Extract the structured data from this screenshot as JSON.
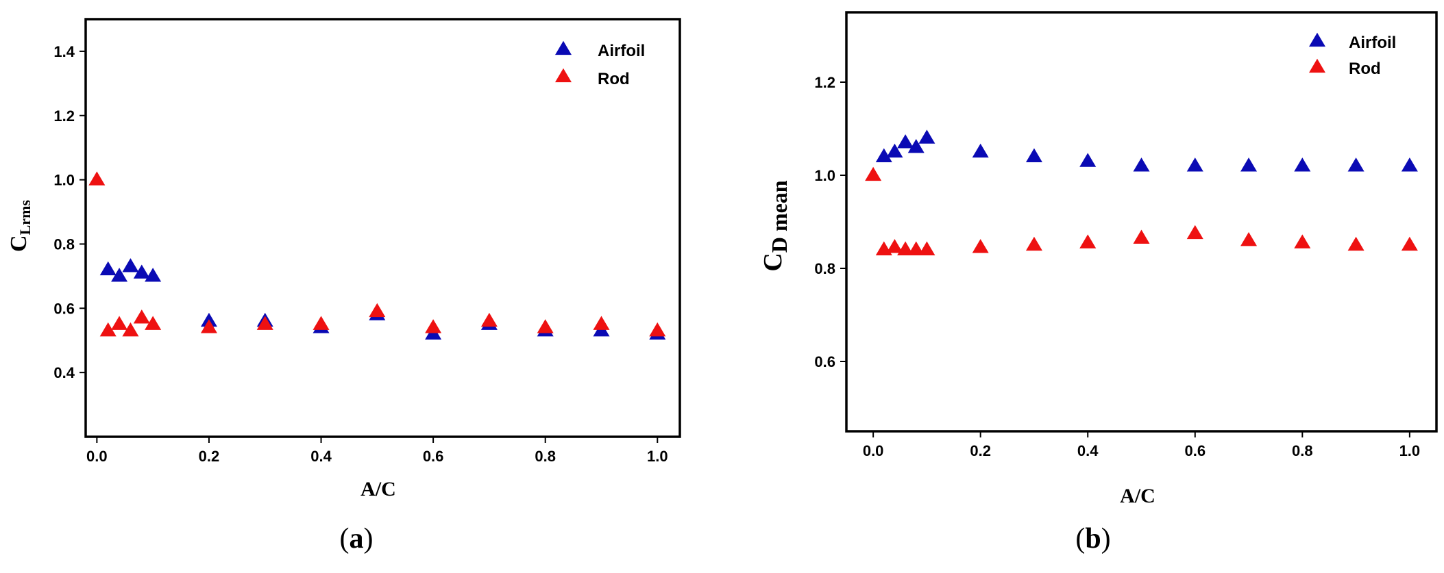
{
  "chart_data": [
    {
      "type": "scatter",
      "panel_label": "a",
      "xlabel": "A/C",
      "ylabel_main": "C",
      "ylabel_sub": "Lrms",
      "xlim": [
        -0.02,
        1.04
      ],
      "ylim": [
        0.2,
        1.5
      ],
      "xticks": [
        "0.0",
        "0.2",
        "0.4",
        "0.6",
        "0.8",
        "1.0"
      ],
      "yticks": [
        "0.4",
        "0.6",
        "0.8",
        "1.0",
        "1.2",
        "1.4"
      ],
      "legend_position": "top-right",
      "series": [
        {
          "name": "Airfoil",
          "color": "#0a0ab4",
          "x": [
            0.02,
            0.04,
            0.06,
            0.08,
            0.1,
            0.2,
            0.3,
            0.4,
            0.5,
            0.6,
            0.7,
            0.8,
            0.9,
            1.0
          ],
          "y": [
            0.72,
            0.7,
            0.73,
            0.71,
            0.7,
            0.56,
            0.56,
            0.54,
            0.58,
            0.52,
            0.55,
            0.53,
            0.53,
            0.52
          ]
        },
        {
          "name": "Rod",
          "color": "#ee1111",
          "x": [
            0.0,
            0.02,
            0.04,
            0.06,
            0.08,
            0.1,
            0.2,
            0.3,
            0.4,
            0.5,
            0.6,
            0.7,
            0.8,
            0.9,
            1.0
          ],
          "y": [
            1.0,
            0.53,
            0.55,
            0.53,
            0.57,
            0.55,
            0.54,
            0.55,
            0.55,
            0.59,
            0.54,
            0.56,
            0.54,
            0.55,
            0.53
          ]
        }
      ]
    },
    {
      "type": "scatter",
      "panel_label": "b",
      "xlabel": "A/C",
      "ylabel_main": "C",
      "ylabel_sub": "D mean",
      "xlim": [
        -0.05,
        1.05
      ],
      "ylim": [
        0.45,
        1.35
      ],
      "xticks": [
        "0.0",
        "0.2",
        "0.4",
        "0.6",
        "0.8",
        "1.0"
      ],
      "yticks": [
        "0.6",
        "0.8",
        "1.0",
        "1.2"
      ],
      "legend_position": "top-right",
      "series": [
        {
          "name": "Airfoil",
          "color": "#0a0ab4",
          "x": [
            0.02,
            0.04,
            0.06,
            0.08,
            0.1,
            0.2,
            0.3,
            0.4,
            0.5,
            0.6,
            0.7,
            0.8,
            0.9,
            1.0
          ],
          "y": [
            1.04,
            1.05,
            1.07,
            1.06,
            1.08,
            1.05,
            1.04,
            1.03,
            1.02,
            1.02,
            1.02,
            1.02,
            1.02,
            1.02
          ]
        },
        {
          "name": "Rod",
          "color": "#ee1111",
          "x": [
            0.0,
            0.02,
            0.04,
            0.06,
            0.08,
            0.1,
            0.2,
            0.3,
            0.4,
            0.5,
            0.6,
            0.7,
            0.8,
            0.9,
            1.0
          ],
          "y": [
            1.0,
            0.84,
            0.845,
            0.84,
            0.84,
            0.84,
            0.845,
            0.85,
            0.855,
            0.865,
            0.875,
            0.86,
            0.855,
            0.85,
            0.85
          ]
        }
      ]
    }
  ]
}
